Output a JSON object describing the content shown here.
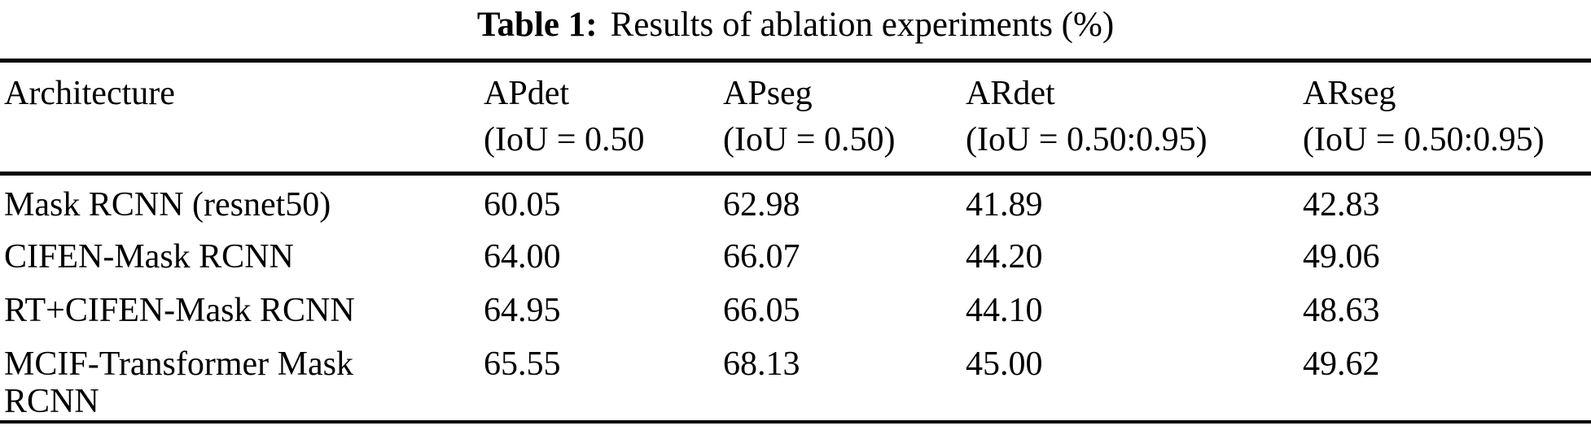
{
  "title": {
    "label": "Table 1:",
    "text": "Results of ablation experiments (%)"
  },
  "table": {
    "columns": [
      {
        "label": "Architecture",
        "sub": ""
      },
      {
        "label": "APdet",
        "sub": "(IoU = 0.50"
      },
      {
        "label": "APseg",
        "sub": "(IoU = 0.50)"
      },
      {
        "label": "ARdet",
        "sub": "(IoU = 0.50:0.95)"
      },
      {
        "label": "ARseg",
        "sub": "(IoU = 0.50:0.95)"
      }
    ],
    "rows": [
      {
        "cells": [
          "Mask RCNN (resnet50)",
          "60.05",
          "62.98",
          "41.89",
          "42.83"
        ]
      },
      {
        "cells": [
          "CIFEN-Mask RCNN",
          "64.00",
          "66.07",
          "44.20",
          "49.06"
        ]
      },
      {
        "cells": [
          "RT+CIFEN-Mask RCNN",
          "64.95",
          "66.05",
          "44.10",
          "48.63"
        ]
      },
      {
        "cells": [
          "MCIF-Transformer Mask RCNN",
          "65.55",
          "68.13",
          "45.00",
          "49.62"
        ]
      }
    ]
  },
  "chart_data": {
    "type": "table",
    "title": "Table 1: Results of ablation experiments (%)",
    "columns": [
      "Architecture",
      "APdet (IoU = 0.50",
      "APseg (IoU = 0.50)",
      "ARdet (IoU = 0.50:0.95)",
      "ARseg (IoU = 0.50:0.95)"
    ],
    "rows": [
      [
        "Mask RCNN (resnet50)",
        60.05,
        62.98,
        41.89,
        42.83
      ],
      [
        "CIFEN-Mask RCNN",
        64.0,
        66.07,
        44.2,
        49.06
      ],
      [
        "RT+CIFEN-Mask RCNN",
        64.95,
        66.05,
        44.1,
        48.63
      ],
      [
        "MCIF-Transformer Mask RCNN",
        65.55,
        68.13,
        45.0,
        49.62
      ]
    ]
  }
}
